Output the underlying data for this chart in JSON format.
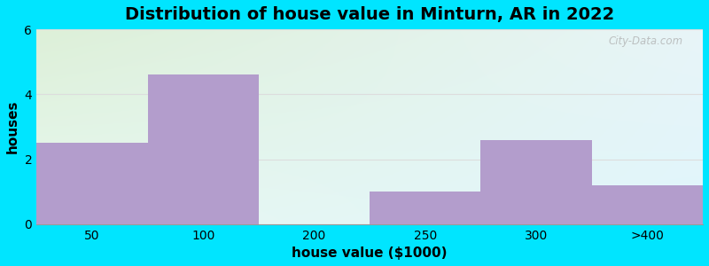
{
  "title": "Distribution of house value in Minturn, AR in 2022",
  "xlabel": "house value ($1000)",
  "ylabel": "houses",
  "categories": [
    "50",
    "100",
    "200",
    "250",
    "300",
    ">400"
  ],
  "values": [
    2.5,
    4.6,
    0,
    1.0,
    2.6,
    1.2
  ],
  "bar_color": "#b39dcc",
  "ylim": [
    0,
    6
  ],
  "yticks": [
    0,
    2,
    4,
    6
  ],
  "background_outer": "#00e5ff",
  "bg_top_left": "#ddf0d8",
  "bg_top_right": "#e8f5f8",
  "bg_bottom_left": "#e8f8f0",
  "bg_bottom_right": "#e0f5fc",
  "grid_color": "#dddddd",
  "title_fontsize": 14,
  "axis_label_fontsize": 11,
  "tick_fontsize": 10,
  "bar_width": 1.0
}
